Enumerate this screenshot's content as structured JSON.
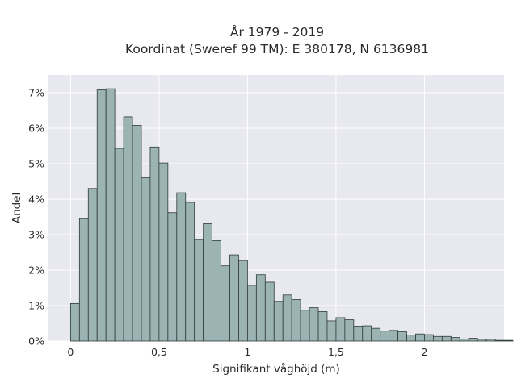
{
  "chart_data": {
    "type": "bar",
    "title_line1": "År 1979 - 2019",
    "title_line2": "Koordinat (Sweref 99 TM): E 380178, N 6136981",
    "xlabel": "Signifikant våghöjd (m)",
    "ylabel": "Andel",
    "bin_width": 0.05,
    "bins_start": 0.0,
    "xlim": [
      -0.125,
      2.45
    ],
    "ylim": [
      0,
      0.075
    ],
    "x_ticks": [
      0,
      0.5,
      1,
      1.5,
      2
    ],
    "x_tick_labels": [
      "0",
      "0,5",
      "1",
      "1,5",
      "2"
    ],
    "y_ticks": [
      0,
      0.01,
      0.02,
      0.03,
      0.04,
      0.05,
      0.06,
      0.07
    ],
    "y_tick_labels": [
      "0%",
      "1%",
      "2%",
      "3%",
      "4%",
      "5%",
      "6%",
      "7%"
    ],
    "values": [
      0.0106,
      0.0345,
      0.043,
      0.0708,
      0.0711,
      0.0543,
      0.0632,
      0.0608,
      0.046,
      0.0547,
      0.0502,
      0.0362,
      0.0418,
      0.0391,
      0.0286,
      0.0331,
      0.0283,
      0.0212,
      0.0243,
      0.0227,
      0.0157,
      0.0187,
      0.0166,
      0.0112,
      0.013,
      0.0117,
      0.0087,
      0.0094,
      0.0083,
      0.0057,
      0.0066,
      0.006,
      0.0042,
      0.0043,
      0.0036,
      0.0028,
      0.003,
      0.0026,
      0.0017,
      0.002,
      0.0018,
      0.0013,
      0.0013,
      0.001,
      0.0006,
      0.0008,
      0.0005,
      0.0005,
      0.0002,
      0.0002
    ],
    "grid": true,
    "colors": {
      "bar_fill": "#9cb3b3",
      "bar_edge": "#2f3a3a",
      "plot_background": "#e8e8f0",
      "grid": "#ffffff"
    }
  }
}
